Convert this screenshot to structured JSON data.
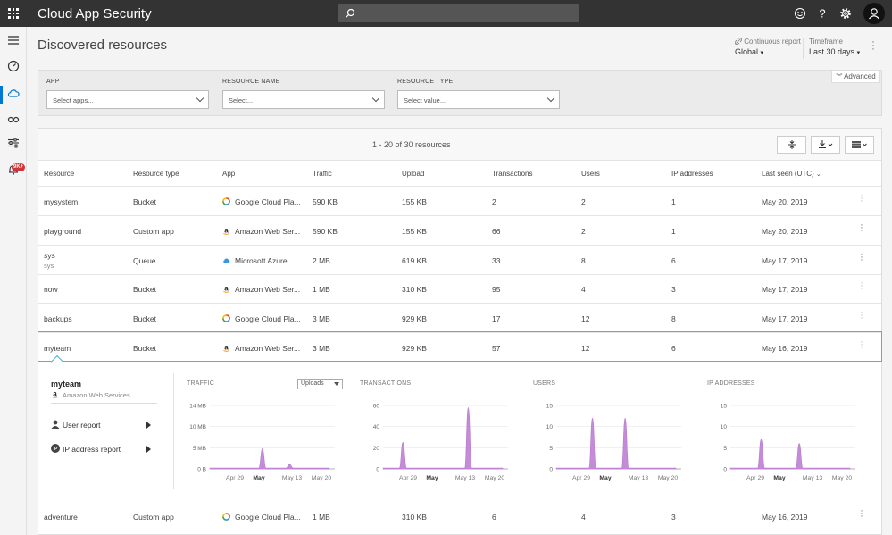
{
  "app": {
    "title": "Cloud App Security"
  },
  "page": {
    "title": "Discovered resources"
  },
  "header": {
    "continuous_report_label": "Continuous report",
    "continuous_report_value": "Global",
    "timeframe_label": "Timeframe",
    "timeframe_value": "Last 30 days"
  },
  "nav": {
    "alerts_badge": "9K+"
  },
  "filters": {
    "advanced_label": "Advanced",
    "app_label": "APP",
    "app_placeholder": "Select apps...",
    "resource_name_label": "RESOURCE NAME",
    "resource_name_placeholder": "Select...",
    "resource_type_label": "RESOURCE TYPE",
    "resource_type_placeholder": "Select value..."
  },
  "table": {
    "count_text": "1 - 20 of 30 resources",
    "columns": [
      "Resource",
      "Resource type",
      "App",
      "Traffic",
      "Upload",
      "Transactions",
      "Users",
      "IP addresses",
      "Last seen (UTC)"
    ],
    "rows": [
      {
        "resource": "mysystem",
        "sub": "",
        "type": "Bucket",
        "app": "Google Cloud Pla...",
        "app_icon": "google-cloud-icon",
        "traffic": "590 KB",
        "upload": "155 KB",
        "transactions": "2",
        "users": "2",
        "ips": "1",
        "last_seen": "May 20, 2019"
      },
      {
        "resource": "playground",
        "sub": "",
        "type": "Custom app",
        "app": "Amazon Web Ser...",
        "app_icon": "amazon-icon",
        "traffic": "590 KB",
        "upload": "155 KB",
        "transactions": "66",
        "users": "2",
        "ips": "1",
        "last_seen": "May 20, 2019"
      },
      {
        "resource": "sys",
        "sub": "sys",
        "type": "Queue",
        "app": "Microsoft Azure",
        "app_icon": "azure-cloud-icon",
        "traffic": "2 MB",
        "upload": "619 KB",
        "transactions": "33",
        "users": "8",
        "ips": "6",
        "last_seen": "May 17, 2019"
      },
      {
        "resource": "now",
        "sub": "",
        "type": "Bucket",
        "app": "Amazon Web Ser...",
        "app_icon": "amazon-icon",
        "traffic": "1 MB",
        "upload": "310 KB",
        "transactions": "95",
        "users": "4",
        "ips": "3",
        "last_seen": "May 17, 2019"
      },
      {
        "resource": "backups",
        "sub": "",
        "type": "Bucket",
        "app": "Google Cloud Pla...",
        "app_icon": "google-cloud-icon",
        "traffic": "3 MB",
        "upload": "929 KB",
        "transactions": "17",
        "users": "12",
        "ips": "8",
        "last_seen": "May 17, 2019"
      },
      {
        "resource": "myteam",
        "sub": "",
        "type": "Bucket",
        "app": "Amazon Web Ser...",
        "app_icon": "amazon-icon",
        "traffic": "3 MB",
        "upload": "929 KB",
        "transactions": "57",
        "users": "12",
        "ips": "6",
        "last_seen": "May 16, 2019"
      },
      {
        "resource": "adventure",
        "sub": "",
        "type": "Custom app",
        "app": "Google Cloud Pla...",
        "app_icon": "google-cloud-icon",
        "traffic": "1 MB",
        "upload": "310 KB",
        "transactions": "6",
        "users": "4",
        "ips": "3",
        "last_seen": "May 16, 2019"
      }
    ]
  },
  "detail": {
    "name": "myteam",
    "provider": "Amazon Web Services",
    "user_report": "User report",
    "ip_report": "IP address report",
    "traffic_select": "Uploads"
  },
  "chart_data": [
    {
      "type": "area",
      "title": "TRAFFIC",
      "x": [
        "Apr 29",
        "May",
        "May 13",
        "May 20"
      ],
      "y_ticks": [
        "14 MB",
        "10 MB",
        "5 MB",
        "0 B"
      ],
      "ylim": [
        0,
        14
      ],
      "unit": "MB",
      "peaks": [
        {
          "x": "May 7",
          "value": 4.5
        },
        {
          "x": "May 12",
          "value": 1.0
        }
      ],
      "color": "#c58ad8"
    },
    {
      "type": "area",
      "title": "TRANSACTIONS",
      "x": [
        "Apr 29",
        "May",
        "May 13",
        "May 20"
      ],
      "y_ticks": [
        "60",
        "40",
        "20",
        "0"
      ],
      "ylim": [
        0,
        60
      ],
      "peaks": [
        {
          "x": "May 1",
          "value": 25
        },
        {
          "x": "May 13",
          "value": 58
        }
      ],
      "color": "#c58ad8"
    },
    {
      "type": "area",
      "title": "USERS",
      "x": [
        "Apr 29",
        "May",
        "May 13",
        "May 20"
      ],
      "y_ticks": [
        "15",
        "10",
        "5",
        "0"
      ],
      "ylim": [
        0,
        15
      ],
      "peaks": [
        {
          "x": "May 4",
          "value": 12
        },
        {
          "x": "May 10",
          "value": 12
        }
      ],
      "color": "#c58ad8"
    },
    {
      "type": "area",
      "title": "IP ADDRESSES",
      "x": [
        "Apr 29",
        "May",
        "May 13",
        "May 20"
      ],
      "y_ticks": [
        "15",
        "10",
        "5",
        "0"
      ],
      "ylim": [
        0,
        15
      ],
      "peaks": [
        {
          "x": "May 3",
          "value": 7
        },
        {
          "x": "May 10",
          "value": 6
        }
      ],
      "color": "#c58ad8"
    }
  ]
}
